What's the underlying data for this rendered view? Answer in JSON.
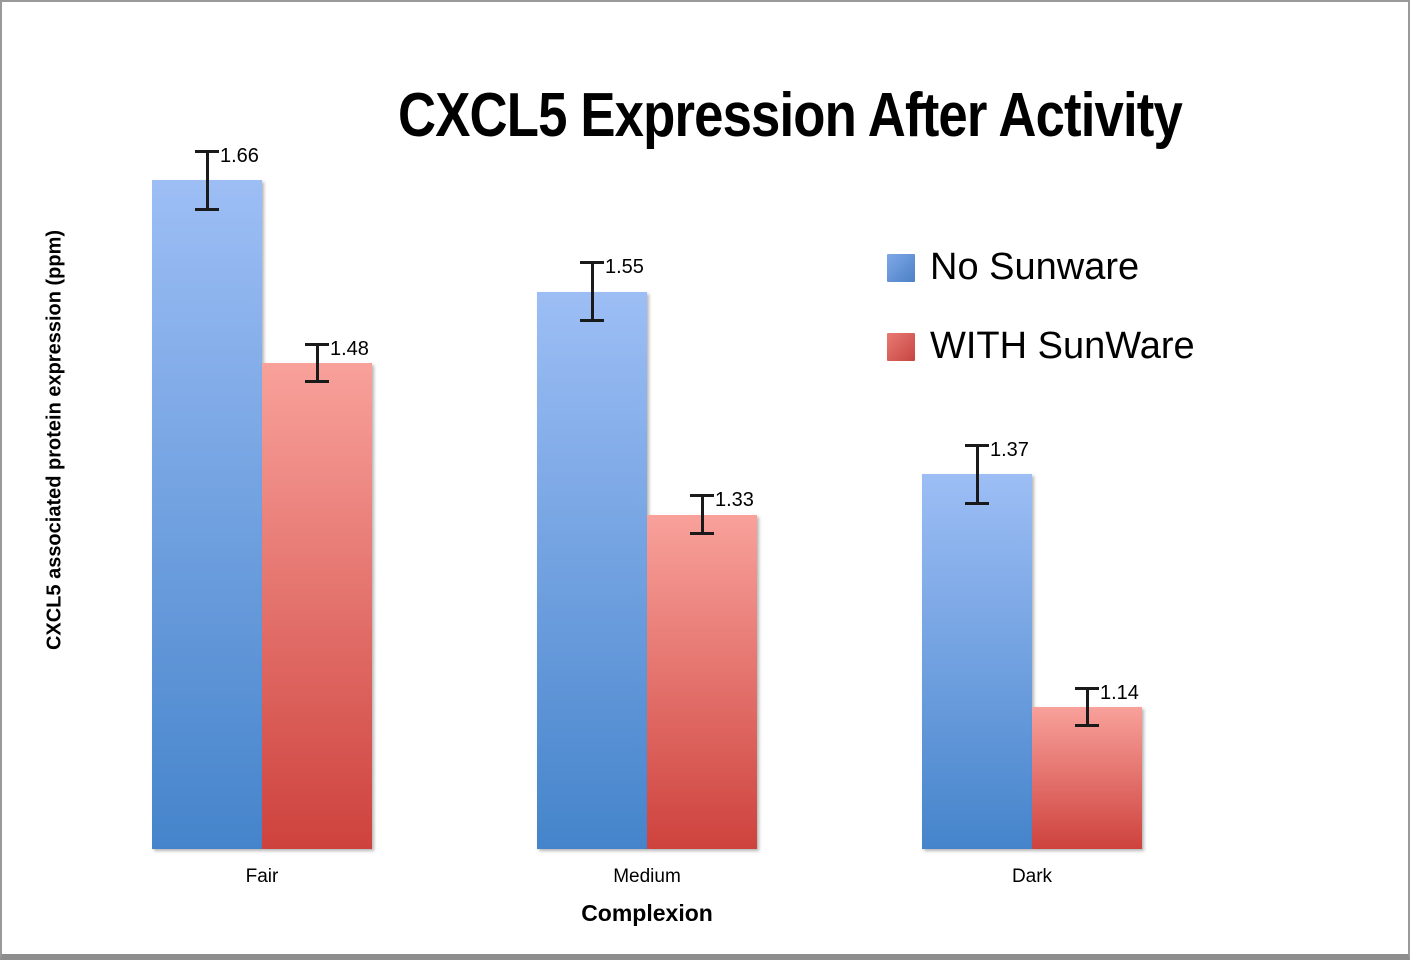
{
  "chart_data": {
    "type": "bar",
    "title": "CXCL5 Expression After Activity",
    "xlabel": "Complexion",
    "ylabel": "CXCL5 associated protein expression (ppm)",
    "categories": [
      "Fair",
      "Medium",
      "Dark"
    ],
    "series": [
      {
        "name": "No Sunware",
        "values": [
          1.66,
          1.55,
          1.37
        ],
        "errors": [
          0.03,
          0.03,
          0.03
        ],
        "color_top": "#9DBEF5",
        "color_bottom": "#4584CB",
        "legend_color_top": "#7FA9E8",
        "legend_color_bottom": "#4C80C5"
      },
      {
        "name": "WITH SunWare",
        "values": [
          1.48,
          1.33,
          1.14
        ],
        "errors": [
          0.02,
          0.02,
          0.02
        ],
        "color_top": "#F9A19B",
        "color_bottom": "#CE423D",
        "legend_color_top": "#E97A74",
        "legend_color_bottom": "#C64540"
      }
    ],
    "value_labels": [
      "1.66",
      "1.55",
      "1.37",
      "1.48",
      "1.33",
      "1.14"
    ],
    "baseline_value": 1.0,
    "ylim": [
      1.0,
      1.8
    ],
    "grid": false,
    "legend_position": "center-right",
    "error_bar_color": "#1a1a1a",
    "frame_border_color": "#9a9a9a"
  }
}
